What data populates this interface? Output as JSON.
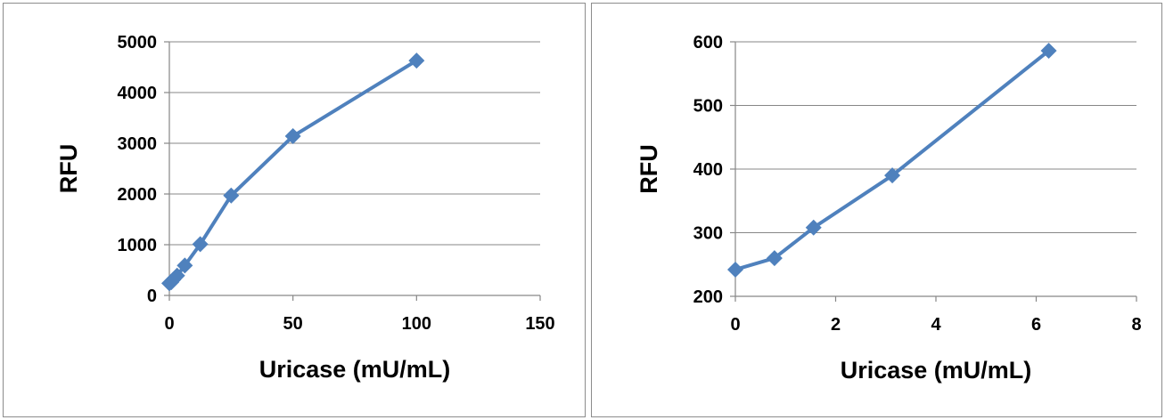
{
  "chart_data": [
    {
      "type": "line",
      "title": "",
      "xlabel": "Uricase (mU/mL)",
      "ylabel": "RFU",
      "xlim": [
        0,
        150
      ],
      "ylim": [
        0,
        5000
      ],
      "xticks": [
        0,
        50,
        100,
        150
      ],
      "yticks": [
        0,
        1000,
        2000,
        3000,
        4000,
        5000
      ],
      "grid": "horizontal",
      "legend": "none",
      "marker": "diamond",
      "color": "#4f81bd",
      "series": [
        {
          "x": [
            0,
            0.78,
            1.56,
            3.13,
            6.25,
            12.5,
            25,
            50,
            100
          ],
          "y": [
            240,
            260,
            310,
            390,
            590,
            1010,
            1970,
            3140,
            4630
          ]
        }
      ]
    },
    {
      "type": "line",
      "title": "",
      "xlabel": "Uricase (mU/mL)",
      "ylabel": "RFU",
      "xlim": [
        0,
        8
      ],
      "ylim": [
        200,
        600
      ],
      "xticks": [
        0,
        2,
        4,
        6,
        8
      ],
      "yticks": [
        200,
        300,
        400,
        500,
        600
      ],
      "grid": "horizontal",
      "legend": "none",
      "marker": "diamond",
      "color": "#4f81bd",
      "series": [
        {
          "x": [
            0,
            0.78,
            1.56,
            3.13,
            6.25
          ],
          "y": [
            242,
            260,
            308,
            390,
            586
          ]
        }
      ]
    }
  ]
}
